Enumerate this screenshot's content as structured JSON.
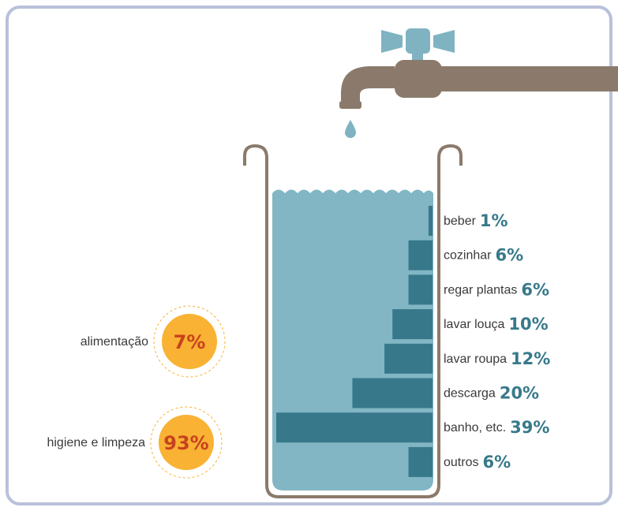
{
  "chart_data": {
    "type": "barh",
    "categories": [
      "beber",
      "cozinhar",
      "regar plantas",
      "lavar louça",
      "lavar roupa",
      "descarga",
      "banho, etc.",
      "outros"
    ],
    "values": [
      1,
      6,
      6,
      10,
      12,
      20,
      39,
      6
    ],
    "value_labels": [
      "1%",
      "6%",
      "6%",
      "10%",
      "12%",
      "20%",
      "39%",
      "6%"
    ],
    "color": "#37798a",
    "groups": [
      {
        "name": "alimentação",
        "value": 7,
        "value_label": "7%"
      },
      {
        "name": "higiene e limpeza",
        "value": 93,
        "value_label": "93%"
      }
    ],
    "group_color": "#f9b233"
  }
}
